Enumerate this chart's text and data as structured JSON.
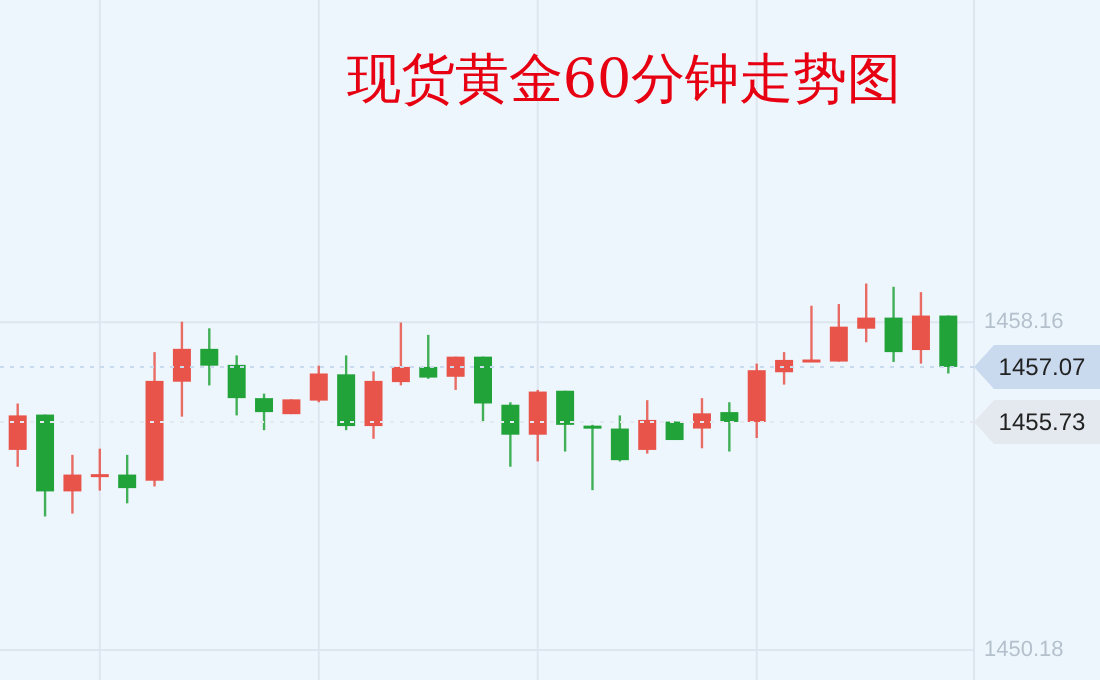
{
  "chart_data": {
    "type": "candlestick",
    "title": "现货黄金60分钟走势图",
    "categories": [
      null,
      null,
      null,
      null,
      null,
      null,
      null,
      null,
      null,
      null,
      null,
      null,
      null,
      null,
      null,
      null,
      null,
      null,
      null,
      null,
      null,
      null,
      null,
      null,
      null,
      null,
      null,
      null,
      null,
      null,
      null,
      null,
      null,
      null,
      null
    ],
    "series": [
      {
        "colors": [
          "#e8534a",
          "#22a33a",
          "#e8534a",
          "#e8534a",
          "#22a33a",
          "#e8534a",
          "#e8534a",
          "#22a33a",
          "#22a33a",
          "#22a33a",
          "#e8534a",
          "#e8534a",
          "#22a33a",
          "#e8534a",
          "#e8534a",
          "#22a33a",
          "#e8534a",
          "#22a33a",
          "#22a33a",
          "#e8534a",
          "#22a33a",
          "#22a33a",
          "#22a33a",
          "#e8534a",
          "#22a33a",
          "#e8534a",
          "#22a33a",
          "#e8534a",
          "#e8534a",
          "#e8534a",
          "#e8534a",
          "#e8534a",
          "#22a33a",
          "#e8534a",
          "#22a33a"
        ],
        "ohlc": [
          [
            1455.05,
            1456.18,
            1454.64,
            1455.89
          ],
          [
            1455.91,
            1455.91,
            1453.43,
            1454.04
          ],
          [
            1454.04,
            1454.93,
            1453.5,
            1454.45
          ],
          [
            1454.44,
            1455.08,
            1454.06,
            1454.46
          ],
          [
            1454.45,
            1454.93,
            1453.75,
            1454.12
          ],
          [
            1454.3,
            1457.43,
            1454.16,
            1456.73
          ],
          [
            1456.71,
            1458.17,
            1455.86,
            1457.51
          ],
          [
            1457.51,
            1458.01,
            1456.62,
            1457.1
          ],
          [
            1457.12,
            1457.35,
            1455.89,
            1456.31
          ],
          [
            1456.31,
            1456.42,
            1455.53,
            1455.97
          ],
          [
            1455.92,
            1456.28,
            1455.92,
            1456.28
          ],
          [
            1456.25,
            1457.1,
            1456.21,
            1456.91
          ],
          [
            1456.89,
            1457.35,
            1455.53,
            1455.63
          ],
          [
            1455.63,
            1456.96,
            1455.32,
            1456.73
          ],
          [
            1456.7,
            1458.15,
            1456.62,
            1457.07
          ],
          [
            1457.07,
            1457.85,
            1456.78,
            1456.81
          ],
          [
            1456.83,
            1457.32,
            1456.51,
            1457.32
          ],
          [
            1457.32,
            1457.32,
            1455.74,
            1456.18
          ],
          [
            1456.15,
            1456.21,
            1454.64,
            1455.42
          ],
          [
            1455.42,
            1456.51,
            1454.77,
            1456.47
          ],
          [
            1456.49,
            1456.49,
            1455.01,
            1455.66
          ],
          [
            1455.64,
            1455.66,
            1454.07,
            1455.61
          ],
          [
            1455.57,
            1455.89,
            1454.77,
            1454.8
          ],
          [
            1455.05,
            1456.26,
            1454.96,
            1455.78
          ],
          [
            1455.74,
            1455.74,
            1455.29,
            1455.29
          ],
          [
            1455.57,
            1456.31,
            1455.09,
            1455.94
          ],
          [
            1455.97,
            1456.21,
            1455.01,
            1455.73
          ],
          [
            1455.73,
            1457.15,
            1455.34,
            1456.99
          ],
          [
            1456.94,
            1457.43,
            1456.64,
            1457.24
          ],
          [
            1457.22,
            1458.56,
            1457.2,
            1457.25
          ],
          [
            1457.2,
            1458.6,
            1457.2,
            1458.05
          ],
          [
            1458.0,
            1459.1,
            1457.67,
            1458.27
          ],
          [
            1458.27,
            1459.02,
            1457.19,
            1457.43
          ],
          [
            1457.48,
            1458.89,
            1457.15,
            1458.32
          ],
          [
            1458.32,
            1458.32,
            1456.91,
            1457.07
          ]
        ]
      }
    ],
    "ylim": [
      1449.45,
      1466.0
    ],
    "yticks": [
      1450.18,
      1458.16
    ],
    "grid": true,
    "ref_lines": [
      {
        "axis": "y",
        "value": 1457.07,
        "label": "1457.07",
        "color": "#c9d9ee"
      },
      {
        "axis": "y",
        "value": 1455.73,
        "label": "1455.73",
        "color": "#e4e9ef"
      }
    ]
  }
}
